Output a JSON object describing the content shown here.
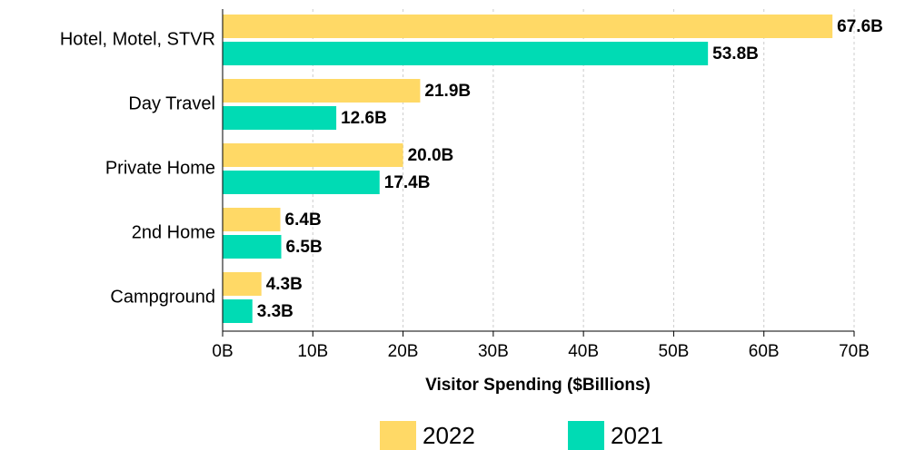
{
  "chart_data": {
    "type": "barh",
    "xlabel": "Visitor Spending ($Billions)",
    "categories": [
      "Hotel, Motel, STVR",
      "Day Travel",
      "Private Home",
      "2nd Home",
      "Campground"
    ],
    "series": [
      {
        "name": "2022",
        "color": "#ffd966",
        "values": [
          67.6,
          21.9,
          20.0,
          6.4,
          4.3
        ],
        "value_labels": [
          "67.6B",
          "21.9B",
          "20.0B",
          "6.4B",
          "4.3B"
        ]
      },
      {
        "name": "2021",
        "color": "#00dbb4",
        "values": [
          53.8,
          12.6,
          17.4,
          6.5,
          3.3
        ],
        "value_labels": [
          "53.8B",
          "12.6B",
          "17.4B",
          "6.5B",
          "3.3B"
        ]
      }
    ],
    "xlim": [
      0,
      70
    ],
    "xticks": [
      {
        "value": 0,
        "label": "0B"
      },
      {
        "value": 10,
        "label": "10B"
      },
      {
        "value": 20,
        "label": "20B"
      },
      {
        "value": 30,
        "label": "30B"
      },
      {
        "value": 40,
        "label": "40B"
      },
      {
        "value": 50,
        "label": "50B"
      },
      {
        "value": 60,
        "label": "60B"
      },
      {
        "value": 70,
        "label": "70B"
      }
    ],
    "grid": true,
    "legend": "bottom"
  }
}
